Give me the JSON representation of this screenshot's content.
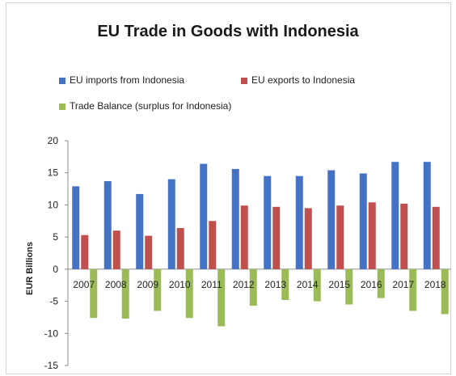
{
  "chart_data": {
    "type": "bar",
    "title": "EU Trade in Goods with Indonesia",
    "xlabel": "",
    "ylabel": "EUR Billions",
    "categories": [
      "2007",
      "2008",
      "2009",
      "2010",
      "2011",
      "2012",
      "2013",
      "2014",
      "2015",
      "2016",
      "2017",
      "2018"
    ],
    "series": [
      {
        "name": "EU imports from Indonesia",
        "color": "#4472c4",
        "values": [
          12.9,
          13.7,
          11.7,
          14.0,
          16.4,
          15.6,
          14.5,
          14.5,
          15.4,
          14.9,
          16.7,
          16.7
        ]
      },
      {
        "name": "EU exports to Indonesia",
        "color": "#c0504d",
        "values": [
          5.3,
          6.0,
          5.2,
          6.4,
          7.5,
          9.9,
          9.7,
          9.5,
          9.9,
          10.4,
          10.2,
          9.7
        ]
      },
      {
        "name": "Trade Balance (surplus for Indonesia)",
        "color": "#9bbb59",
        "values": [
          -7.6,
          -7.7,
          -6.5,
          -7.6,
          -8.9,
          -5.7,
          -4.8,
          -5.0,
          -5.5,
          -4.5,
          -6.5,
          -7.0
        ]
      }
    ],
    "ylim": [
      -15,
      20
    ],
    "yticks": [
      20,
      15,
      10,
      5,
      0,
      -5,
      -10,
      -15
    ],
    "grid": false,
    "legend_position": "top"
  }
}
